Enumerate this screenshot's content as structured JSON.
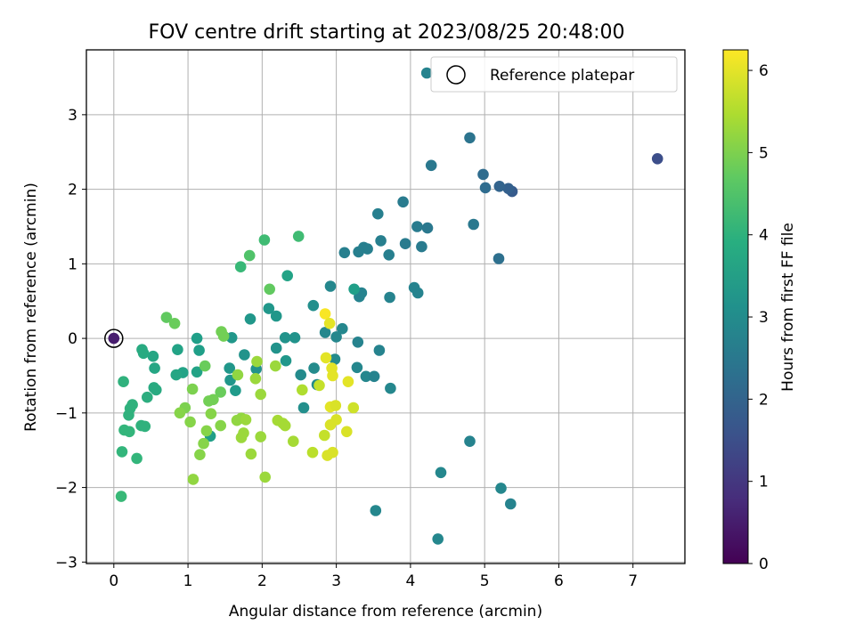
{
  "chart_data": {
    "type": "scatter",
    "title": "FOV centre drift starting at 2023/08/25 20:48:00",
    "xlabel": "Angular distance from reference (arcmin)",
    "ylabel": "Rotation from reference (arcmin)",
    "xlim": [
      -0.37,
      7.7
    ],
    "ylim": [
      -3.02,
      3.87
    ],
    "xticks": [
      0,
      1,
      2,
      3,
      4,
      5,
      6,
      7
    ],
    "yticks": [
      -3,
      -2,
      -1,
      0,
      1,
      2,
      3
    ],
    "grid": true,
    "legend": {
      "placement": "top-right",
      "entries": [
        "Reference platepar"
      ]
    },
    "colorbar": {
      "label": "Hours from first FF file",
      "range": [
        0,
        6.25
      ],
      "ticks": [
        0,
        1,
        2,
        3,
        4,
        5,
        6
      ],
      "colormap": "viridis"
    },
    "reference_point": {
      "x": 0,
      "y": 0,
      "c": 0.5
    },
    "points": [
      [
        7.33,
        2.41,
        1.5
      ],
      [
        5.37,
        1.97,
        1.8
      ],
      [
        5.32,
        2.01,
        1.9
      ],
      [
        5.2,
        2.04,
        2.0
      ],
      [
        4.98,
        2.2,
        2.2
      ],
      [
        5.01,
        2.02,
        2.2
      ],
      [
        4.8,
        2.69,
        2.4
      ],
      [
        4.85,
        1.53,
        2.5
      ],
      [
        5.19,
        1.07,
        2.3
      ],
      [
        4.28,
        2.32,
        2.5
      ],
      [
        3.9,
        1.83,
        2.6
      ],
      [
        4.09,
        1.5,
        2.6
      ],
      [
        4.23,
        1.48,
        2.5
      ],
      [
        4.15,
        1.23,
        2.6
      ],
      [
        3.93,
        1.27,
        2.6
      ],
      [
        3.56,
        1.67,
        2.7
      ],
      [
        3.6,
        1.31,
        2.7
      ],
      [
        3.71,
        1.12,
        2.7
      ],
      [
        3.37,
        1.22,
        2.7
      ],
      [
        3.42,
        1.2,
        2.7
      ],
      [
        3.3,
        1.16,
        2.7
      ],
      [
        3.11,
        1.15,
        2.7
      ],
      [
        4.05,
        0.68,
        2.8
      ],
      [
        4.1,
        0.61,
        2.8
      ],
      [
        3.72,
        0.55,
        2.8
      ],
      [
        3.34,
        0.61,
        2.8
      ],
      [
        3.31,
        0.56,
        2.8
      ],
      [
        2.92,
        0.7,
        2.9
      ],
      [
        3.24,
        0.66,
        3.5
      ],
      [
        2.34,
        0.84,
        3.6
      ],
      [
        3.08,
        0.13,
        2.9
      ],
      [
        2.85,
        0.08,
        2.9
      ],
      [
        3.0,
        0.02,
        2.9
      ],
      [
        3.29,
        -0.05,
        2.8
      ],
      [
        3.58,
        -0.16,
        2.8
      ],
      [
        3.28,
        -0.39,
        2.9
      ],
      [
        3.4,
        -0.51,
        2.9
      ],
      [
        3.51,
        -0.51,
        2.8
      ],
      [
        3.73,
        -0.67,
        2.9
      ],
      [
        2.98,
        -0.28,
        3.0
      ],
      [
        2.7,
        -0.4,
        3.0
      ],
      [
        2.52,
        -0.49,
        3.0
      ],
      [
        2.74,
        -0.62,
        3.0
      ],
      [
        2.56,
        -0.93,
        3.1
      ],
      [
        2.69,
        0.44,
        3.1
      ],
      [
        2.44,
        0.01,
        3.2
      ],
      [
        2.31,
        0.01,
        3.2
      ],
      [
        2.19,
        -0.13,
        3.2
      ],
      [
        2.32,
        -0.3,
        3.3
      ],
      [
        2.09,
        0.4,
        3.3
      ],
      [
        2.19,
        0.3,
        3.3
      ],
      [
        1.84,
        0.26,
        3.3
      ],
      [
        1.92,
        -0.41,
        3.2
      ],
      [
        1.76,
        -0.22,
        3.2
      ],
      [
        1.59,
        0.01,
        3.3
      ],
      [
        1.56,
        -0.4,
        3.3
      ],
      [
        1.57,
        -0.56,
        3.3
      ],
      [
        1.64,
        -0.7,
        3.4
      ],
      [
        1.12,
        0.0,
        3.5
      ],
      [
        1.3,
        -1.31,
        3.5
      ],
      [
        1.15,
        -0.16,
        3.5
      ],
      [
        1.12,
        -0.45,
        3.6
      ],
      [
        0.93,
        -0.46,
        3.6
      ],
      [
        0.86,
        -0.15,
        3.6
      ],
      [
        0.84,
        -0.49,
        3.7
      ],
      [
        0.53,
        -0.24,
        3.7
      ],
      [
        0.55,
        -0.4,
        3.7
      ],
      [
        0.54,
        -0.66,
        3.8
      ],
      [
        0.57,
        -0.69,
        3.8
      ],
      [
        0.38,
        -0.15,
        3.8
      ],
      [
        0.4,
        -0.2,
        3.8
      ],
      [
        0.45,
        -0.79,
        3.9
      ],
      [
        0.25,
        -0.89,
        4.0
      ],
      [
        0.22,
        -0.94,
        4.0
      ],
      [
        0.2,
        -1.03,
        4.0
      ],
      [
        0.13,
        -0.58,
        4.0
      ],
      [
        0.37,
        -1.17,
        4.0
      ],
      [
        0.42,
        -1.18,
        4.0
      ],
      [
        0.14,
        -1.23,
        4.1
      ],
      [
        0.21,
        -1.25,
        4.1
      ],
      [
        0.11,
        -1.52,
        4.1
      ],
      [
        0.31,
        -1.61,
        4.1
      ],
      [
        0.1,
        -2.12,
        4.2
      ],
      [
        1.71,
        0.96,
        4.2
      ],
      [
        2.03,
        1.32,
        4.3
      ],
      [
        2.49,
        1.37,
        4.3
      ],
      [
        1.83,
        1.11,
        4.5
      ],
      [
        2.1,
        0.66,
        4.7
      ],
      [
        0.71,
        0.28,
        4.7
      ],
      [
        0.82,
        0.2,
        4.8
      ],
      [
        1.45,
        0.09,
        4.9
      ],
      [
        1.48,
        0.03,
        4.9
      ],
      [
        1.23,
        -0.37,
        4.8
      ],
      [
        1.44,
        -0.72,
        4.8
      ],
      [
        1.34,
        -0.82,
        4.9
      ],
      [
        1.28,
        -0.84,
        4.9
      ],
      [
        1.06,
        -0.68,
        5.0
      ],
      [
        0.96,
        -0.93,
        5.0
      ],
      [
        0.89,
        -1.0,
        5.1
      ],
      [
        1.03,
        -1.12,
        5.1
      ],
      [
        1.31,
        -1.01,
        5.1
      ],
      [
        1.44,
        -1.17,
        5.1
      ],
      [
        1.25,
        -1.24,
        5.1
      ],
      [
        1.21,
        -1.41,
        5.1
      ],
      [
        1.16,
        -1.56,
        5.1
      ],
      [
        1.07,
        -1.89,
        5.2
      ],
      [
        1.66,
        -1.1,
        5.2
      ],
      [
        1.72,
        -1.07,
        5.2
      ],
      [
        1.78,
        -1.09,
        5.3
      ],
      [
        1.75,
        -1.27,
        5.3
      ],
      [
        1.72,
        -1.33,
        5.3
      ],
      [
        1.85,
        -1.55,
        5.3
      ],
      [
        1.98,
        -1.32,
        5.3
      ],
      [
        2.04,
        -1.86,
        5.3
      ],
      [
        1.67,
        -0.49,
        5.2
      ],
      [
        1.91,
        -0.54,
        5.3
      ],
      [
        1.98,
        -0.75,
        5.3
      ],
      [
        2.18,
        -0.37,
        5.3
      ],
      [
        1.93,
        -0.31,
        5.3
      ],
      [
        2.21,
        -1.1,
        5.4
      ],
      [
        2.28,
        -1.14,
        5.4
      ],
      [
        2.31,
        -1.17,
        5.4
      ],
      [
        2.42,
        -1.38,
        5.4
      ],
      [
        2.54,
        -0.69,
        5.5
      ],
      [
        2.68,
        -1.53,
        5.6
      ],
      [
        2.77,
        -0.63,
        5.7
      ],
      [
        2.84,
        -1.3,
        5.7
      ],
      [
        2.88,
        -1.57,
        5.9
      ],
      [
        2.95,
        -1.53,
        5.9
      ],
      [
        2.85,
        0.33,
        6.2
      ],
      [
        2.91,
        0.2,
        6.0
      ],
      [
        2.86,
        -0.26,
        6.0
      ],
      [
        2.94,
        -0.4,
        6.0
      ],
      [
        2.95,
        -0.5,
        6.0
      ],
      [
        2.92,
        -0.92,
        6.0
      ],
      [
        3.16,
        -0.58,
        6.0
      ],
      [
        2.99,
        -0.9,
        5.9
      ],
      [
        3.0,
        -1.09,
        5.9
      ],
      [
        2.92,
        -1.16,
        5.9
      ],
      [
        3.14,
        -1.25,
        5.9
      ],
      [
        3.23,
        -0.93,
        5.8
      ],
      [
        3.53,
        -2.31,
        2.9
      ],
      [
        4.41,
        -1.8,
        2.9
      ],
      [
        4.37,
        -2.69,
        2.9
      ],
      [
        4.8,
        -1.38,
        2.8
      ],
      [
        5.22,
        -2.01,
        2.9
      ],
      [
        5.35,
        -2.22,
        2.8
      ],
      [
        4.22,
        3.56,
        2.8
      ]
    ]
  }
}
